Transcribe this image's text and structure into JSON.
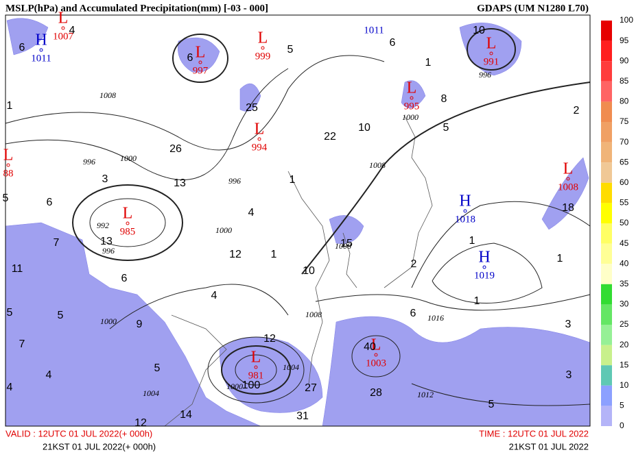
{
  "header": {
    "title": "MSLP(hPa) and Accumulated Precipitation(mm) [-03 - 000]",
    "model": "GDAPS (UM N1280 L70)"
  },
  "centers": [
    {
      "symbol": "L",
      "value": 1007,
      "color": "#e00000"
    },
    {
      "symbol": "H",
      "value": 1011,
      "color": "#0000c8"
    },
    {
      "symbol": "L",
      "value": 997,
      "color": "#e00000"
    },
    {
      "symbol": "L",
      "value": 999,
      "color": "#e00000"
    },
    {
      "symbol": "L",
      "value": 994,
      "color": "#e00000"
    },
    {
      "symbol": "L",
      "value": 985,
      "color": "#e00000"
    },
    {
      "symbol": "L",
      "value": 995,
      "color": "#e00000"
    },
    {
      "symbol": "L",
      "value": 991,
      "color": "#e00000"
    },
    {
      "symbol": "L",
      "value": 1008,
      "color": "#e00000"
    },
    {
      "symbol": "H",
      "value": 1018,
      "color": "#0000c8"
    },
    {
      "symbol": "H",
      "value": 1019,
      "color": "#0000c8"
    },
    {
      "symbol": "L",
      "value": 981,
      "color": "#e00000"
    },
    {
      "symbol": "L",
      "value": 1003,
      "color": "#e00000"
    },
    {
      "symbol": "L",
      "value": 88,
      "color": "#e00000"
    }
  ],
  "edge_labels": [
    {
      "value": 1011,
      "color": "#0000c8"
    }
  ],
  "isobar_labels": [
    1008,
    996,
    1000,
    996,
    1000,
    992,
    996,
    1000,
    1008,
    1000,
    996,
    1004,
    1000,
    1008,
    1016,
    1012,
    1008,
    1004
  ],
  "point_labels": [
    4,
    6,
    6,
    5,
    6,
    1,
    10,
    8,
    5,
    2,
    1,
    25,
    26,
    22,
    10,
    13,
    3,
    1,
    5,
    6,
    4,
    7,
    13,
    12,
    1,
    15,
    1,
    18,
    1,
    11,
    6,
    10,
    2,
    4,
    1,
    5,
    5,
    9,
    6,
    3,
    7,
    12,
    40,
    5,
    4,
    4,
    100,
    27,
    28,
    3,
    14,
    12,
    31,
    5
  ],
  "colorbar": {
    "ticks": [
      100,
      95,
      90,
      85,
      80,
      75,
      70,
      65,
      60,
      55,
      50,
      45,
      40,
      35,
      30,
      25,
      20,
      15,
      10,
      5,
      0
    ],
    "colors": [
      "#e60000",
      "#ff1e1e",
      "#ff3c3c",
      "#ff6464",
      "#f08c50",
      "#f0a064",
      "#f0b478",
      "#f0c896",
      "#ffdc00",
      "#ffff00",
      "#ffff64",
      "#ffff96",
      "#ffffc8",
      "#32dc32",
      "#64e664",
      "#96f096",
      "#c8f08c",
      "#5fc8b4",
      "#8ca0ff",
      "#b4b4f8"
    ]
  },
  "footer": {
    "valid_utc": "VALID : 12UTC 01 JUL 2022(+ 000h)",
    "valid_kst": "21KST 01 JUL 2022(+ 000h)",
    "time_utc": "TIME : 12UTC 01 JUL 2022",
    "time_kst": "21KST 01 JUL 2022"
  }
}
